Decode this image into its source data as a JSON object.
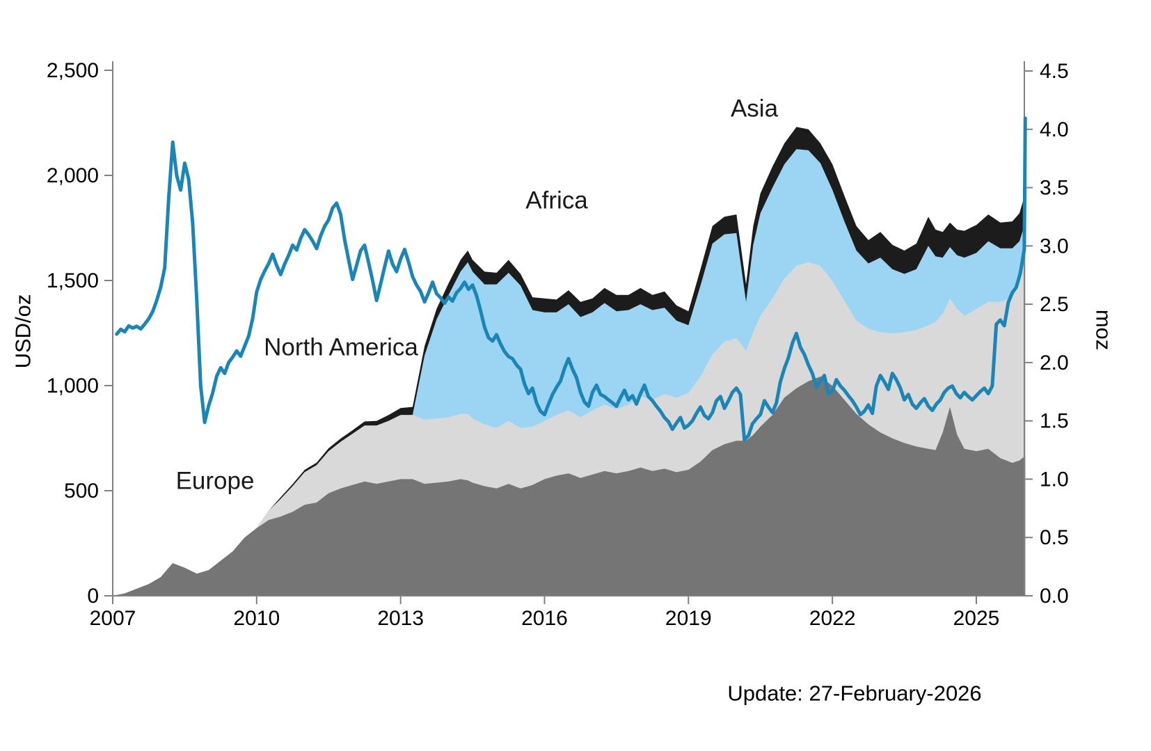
{
  "labels": {
    "europe": "Europe",
    "north_america": "North America",
    "africa": "Africa",
    "asia": "Asia"
  },
  "update_note": "Update: 27-February-2026",
  "chart_data": {
    "type": "area",
    "subtype": "stacked-area-with-line",
    "title": "",
    "grid": false,
    "legend_position": "in-plot-text-labels",
    "x_axis": {
      "tick_values": [
        2007,
        2010,
        2013,
        2016,
        2019,
        2022,
        2025
      ],
      "tick_labels": [
        "2007",
        "2010",
        "2013",
        "2016",
        "2019",
        "2022",
        "2025"
      ],
      "range": [
        2007,
        2026.05
      ]
    },
    "left_axis": {
      "title": "USD/oz",
      "tick_values": [
        0,
        500,
        1000,
        1500,
        2000,
        2500
      ],
      "tick_labels": [
        "0",
        "500",
        "1,000",
        "1,500",
        "2,000",
        "2,500"
      ],
      "range": [
        0,
        2500
      ]
    },
    "right_axis": {
      "title": "moz",
      "tick_values": [
        0,
        0.5,
        1,
        1.5,
        2,
        2.5,
        3,
        3.5,
        4,
        4.5
      ],
      "tick_labels": [
        "0.0",
        "0.5",
        "1.0",
        "1.5",
        "2.0",
        "2.5",
        "3.0",
        "3.5",
        "4.0",
        "4.5"
      ],
      "range": [
        0,
        4.5
      ]
    },
    "stacked_areas": {
      "axis": "right",
      "unit": "moz",
      "x": [
        2007.0,
        2007.25,
        2007.5,
        2007.75,
        2008.0,
        2008.25,
        2008.5,
        2008.75,
        2009.0,
        2009.25,
        2009.5,
        2009.75,
        2010.0,
        2010.25,
        2010.5,
        2010.75,
        2011.0,
        2011.25,
        2011.5,
        2011.75,
        2012.0,
        2012.25,
        2012.5,
        2012.75,
        2013.0,
        2013.25,
        2013.5,
        2013.75,
        2014.0,
        2014.25,
        2014.4,
        2014.5,
        2014.75,
        2015.0,
        2015.25,
        2015.5,
        2015.75,
        2016.0,
        2016.25,
        2016.5,
        2016.75,
        2017.0,
        2017.25,
        2017.5,
        2017.75,
        2018.0,
        2018.25,
        2018.5,
        2018.75,
        2019.0,
        2019.25,
        2019.5,
        2019.75,
        2020.0,
        2020.2,
        2020.35,
        2020.5,
        2020.75,
        2021.0,
        2021.25,
        2021.5,
        2021.75,
        2022.0,
        2022.25,
        2022.5,
        2022.75,
        2023.0,
        2023.25,
        2023.5,
        2023.75,
        2024.0,
        2024.15,
        2024.3,
        2024.45,
        2024.6,
        2024.75,
        2025.0,
        2025.25,
        2025.5,
        2025.75,
        2025.9,
        2026.02
      ],
      "series": [
        {
          "name": "Europe",
          "color": "#757575",
          "values": [
            0.0,
            0.02,
            0.06,
            0.1,
            0.16,
            0.28,
            0.24,
            0.19,
            0.22,
            0.3,
            0.38,
            0.5,
            0.58,
            0.65,
            0.68,
            0.72,
            0.78,
            0.8,
            0.88,
            0.92,
            0.95,
            0.98,
            0.96,
            0.98,
            1.0,
            1.0,
            0.96,
            0.97,
            0.98,
            1.0,
            0.99,
            0.97,
            0.94,
            0.92,
            0.96,
            0.92,
            0.95,
            1.0,
            1.03,
            1.05,
            1.01,
            1.04,
            1.07,
            1.05,
            1.07,
            1.1,
            1.07,
            1.09,
            1.06,
            1.08,
            1.15,
            1.25,
            1.3,
            1.33,
            1.33,
            1.38,
            1.45,
            1.55,
            1.7,
            1.78,
            1.84,
            1.88,
            1.8,
            1.68,
            1.56,
            1.47,
            1.4,
            1.35,
            1.31,
            1.28,
            1.26,
            1.25,
            1.4,
            1.62,
            1.38,
            1.26,
            1.24,
            1.26,
            1.18,
            1.14,
            1.16,
            1.2
          ]
        },
        {
          "name": "North America",
          "color": "#d9d9d9",
          "values": [
            0,
            0,
            0,
            0,
            0,
            0,
            0,
            0,
            0,
            0,
            0,
            0,
            0.0,
            0.08,
            0.15,
            0.22,
            0.28,
            0.32,
            0.36,
            0.4,
            0.44,
            0.48,
            0.5,
            0.52,
            0.55,
            0.55,
            0.55,
            0.55,
            0.55,
            0.56,
            0.57,
            0.55,
            0.53,
            0.52,
            0.54,
            0.52,
            0.5,
            0.5,
            0.52,
            0.54,
            0.52,
            0.55,
            0.57,
            0.55,
            0.57,
            0.61,
            0.61,
            0.64,
            0.64,
            0.66,
            0.73,
            0.82,
            0.88,
            0.88,
            0.77,
            0.88,
            0.95,
            1.0,
            1.02,
            1.05,
            1.02,
            0.95,
            0.9,
            0.85,
            0.8,
            0.82,
            0.86,
            0.9,
            0.95,
            1.0,
            1.06,
            1.1,
            1.02,
            0.93,
            1.08,
            1.14,
            1.22,
            1.26,
            1.34,
            1.42,
            1.52,
            1.7
          ]
        },
        {
          "name": "Africa",
          "color": "#9cd5f3",
          "values": [
            0,
            0,
            0,
            0,
            0,
            0,
            0,
            0,
            0,
            0,
            0,
            0,
            0,
            0,
            0,
            0,
            0,
            0,
            0,
            0,
            0,
            0,
            0,
            0,
            0,
            0.0,
            0.55,
            0.85,
            1.05,
            1.22,
            1.3,
            1.26,
            1.2,
            1.23,
            1.27,
            1.22,
            1.0,
            0.93,
            0.88,
            0.91,
            0.86,
            0.84,
            0.87,
            0.84,
            0.81,
            0.79,
            0.77,
            0.74,
            0.66,
            0.58,
            0.78,
            0.95,
            0.92,
            0.9,
            0.42,
            0.75,
            0.88,
            0.95,
            0.98,
            1.0,
            0.96,
            0.88,
            0.78,
            0.68,
            0.6,
            0.56,
            0.64,
            0.55,
            0.5,
            0.52,
            0.68,
            0.56,
            0.48,
            0.44,
            0.46,
            0.5,
            0.48,
            0.52,
            0.46,
            0.42,
            0.36,
            0.3
          ]
        },
        {
          "name": "Asia",
          "color": "#1c1c1c",
          "values": [
            0,
            0,
            0,
            0,
            0,
            0,
            0,
            0,
            0,
            0,
            0,
            0,
            0,
            0,
            0.015,
            0.018,
            0.02,
            0.022,
            0.025,
            0.028,
            0.03,
            0.035,
            0.04,
            0.05,
            0.06,
            0.07,
            0.08,
            0.09,
            0.1,
            0.1,
            0.1,
            0.1,
            0.11,
            0.1,
            0.11,
            0.1,
            0.11,
            0.12,
            0.11,
            0.12,
            0.13,
            0.12,
            0.13,
            0.14,
            0.13,
            0.14,
            0.13,
            0.14,
            0.13,
            0.12,
            0.14,
            0.15,
            0.15,
            0.16,
            0.15,
            0.16,
            0.17,
            0.18,
            0.18,
            0.19,
            0.18,
            0.17,
            0.22,
            0.22,
            0.21,
            0.2,
            0.22,
            0.21,
            0.2,
            0.22,
            0.25,
            0.23,
            0.22,
            0.21,
            0.22,
            0.23,
            0.24,
            0.23,
            0.22,
            0.23,
            0.24,
            0.25
          ]
        }
      ]
    },
    "price_line": {
      "name": "Price",
      "axis": "left",
      "unit": "USD/oz",
      "color": "#1b86b6",
      "x_start": 2007.083,
      "x_step": 0.083333,
      "values": [
        1245,
        1268,
        1256,
        1284,
        1274,
        1282,
        1270,
        1292,
        1318,
        1352,
        1405,
        1468,
        1560,
        1890,
        2158,
        2000,
        1930,
        2058,
        1982,
        1772,
        1418,
        998,
        825,
        905,
        965,
        1045,
        1085,
        1058,
        1110,
        1135,
        1165,
        1140,
        1188,
        1235,
        1320,
        1445,
        1505,
        1545,
        1580,
        1625,
        1572,
        1528,
        1578,
        1620,
        1668,
        1645,
        1700,
        1742,
        1718,
        1688,
        1652,
        1712,
        1758,
        1788,
        1845,
        1868,
        1815,
        1695,
        1598,
        1505,
        1572,
        1642,
        1668,
        1585,
        1500,
        1405,
        1482,
        1565,
        1640,
        1578,
        1542,
        1602,
        1648,
        1588,
        1518,
        1478,
        1448,
        1398,
        1442,
        1492,
        1438,
        1418,
        1392,
        1422,
        1402,
        1442,
        1462,
        1492,
        1458,
        1478,
        1428,
        1358,
        1278,
        1228,
        1212,
        1242,
        1198,
        1162,
        1138,
        1128,
        1098,
        1078,
        1008,
        962,
        988,
        918,
        878,
        862,
        912,
        958,
        992,
        1022,
        1082,
        1128,
        1078,
        1038,
        968,
        922,
        902,
        968,
        1002,
        958,
        948,
        932,
        918,
        902,
        942,
        978,
        932,
        952,
        912,
        962,
        1002,
        948,
        928,
        902,
        878,
        848,
        828,
        792,
        822,
        848,
        798,
        812,
        832,
        868,
        898,
        858,
        842,
        872,
        928,
        948,
        892,
        928,
        968,
        988,
        958,
        742,
        762,
        818,
        842,
        862,
        928,
        898,
        872,
        918,
        1018,
        1082,
        1132,
        1202,
        1248,
        1182,
        1148,
        1098,
        1058,
        992,
        1022,
        1048,
        962,
        972,
        1028,
        998,
        978,
        952,
        928,
        898,
        862,
        878,
        908,
        868,
        998,
        1048,
        1018,
        982,
        1058,
        1028,
        988,
        932,
        958,
        912,
        892,
        918,
        938,
        902,
        882,
        912,
        932,
        968,
        988,
        998,
        962,
        942,
        968,
        948,
        932,
        952,
        972,
        988,
        962,
        998,
        1292,
        1312,
        1285,
        1395,
        1442,
        1468,
        1535
      ],
      "extra_points": [
        [
          2026.0,
          1648
        ],
        [
          2026.02,
          2272
        ]
      ]
    }
  }
}
